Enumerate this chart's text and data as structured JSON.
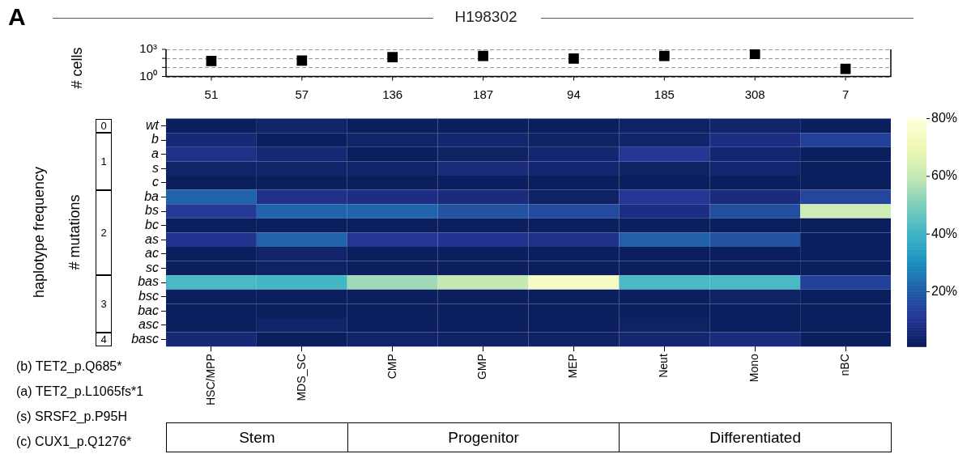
{
  "chart_data": [
    {
      "type": "scatter",
      "title": "H198302",
      "ylabel": "# cells",
      "annotations": [
        "A"
      ],
      "categories": [
        "51",
        "57",
        "136",
        "187",
        "94",
        "185",
        "308",
        "7"
      ],
      "series": [
        {
          "color": "#000000",
          "values": [
            51,
            57,
            136,
            187,
            94,
            185,
            308,
            7
          ]
        }
      ],
      "log": "y",
      "ylim": [
        1,
        1000
      ],
      "yticks": [
        {
          "value": 1,
          "label": "10⁰"
        },
        {
          "value": 10,
          "label": null
        },
        {
          "value": 100,
          "label": null
        },
        {
          "value": 1000,
          "label": "10³"
        }
      ],
      "grid": "y",
      "marker": "square"
    },
    {
      "type": "heatmap",
      "ylabel": "haplotype frequency",
      "annotations": [
        "# mutations",
        "0",
        "1",
        "2",
        "3",
        "4",
        "Stem",
        "Progenitor",
        "Differentiated",
        "(b) TET2_p.Q685*",
        "(a) TET2_p.L1065fs*1",
        "(s) SRSF2_p.P95H",
        "(c) CUX1_p.Q1276*"
      ],
      "categories": [
        "HSC/MPP",
        "MDS_SC",
        "CMP",
        "GMP",
        "MEP",
        "Neut",
        "Mono",
        "nBC"
      ],
      "y_categories": [
        "wt",
        "b",
        "a",
        "s",
        "c",
        "ba",
        "bs",
        "bc",
        "as",
        "ac",
        "sc",
        "bas",
        "bsc",
        "bac",
        "asc",
        "basc"
      ],
      "cells": [
        [
          2,
          4,
          2,
          2,
          2,
          3,
          4,
          2
        ],
        [
          6,
          2,
          4,
          5,
          3,
          4,
          8,
          14
        ],
        [
          9,
          6,
          2,
          3,
          5,
          11,
          5,
          2
        ],
        [
          4,
          4,
          4,
          7,
          5,
          3,
          5,
          2
        ],
        [
          2,
          2,
          2,
          2,
          2,
          2,
          2,
          2
        ],
        [
          22,
          9,
          8,
          7,
          3,
          11,
          7,
          15
        ],
        [
          12,
          22,
          22,
          18,
          16,
          8,
          17,
          62
        ],
        [
          2,
          2,
          2,
          2,
          2,
          2,
          2,
          2
        ],
        [
          10,
          22,
          11,
          10,
          9,
          21,
          18,
          2
        ],
        [
          2,
          4,
          2,
          2,
          2,
          2,
          2,
          2
        ],
        [
          2,
          3,
          2,
          2,
          2,
          2,
          2,
          2
        ],
        [
          42,
          41,
          55,
          60,
          75,
          42,
          42,
          14
        ],
        [
          2,
          2,
          2,
          2,
          2,
          2,
          3,
          2
        ],
        [
          2,
          2,
          2,
          2,
          2,
          2,
          2,
          2
        ],
        [
          2,
          4,
          2,
          2,
          2,
          3,
          2,
          2
        ],
        [
          6,
          2,
          4,
          3,
          3,
          5,
          7,
          2
        ]
      ],
      "clim": [
        1,
        80
      ],
      "cticks": [
        {
          "value": 20,
          "label": "20%"
        },
        {
          "value": 40,
          "label": "40%"
        },
        {
          "value": 60,
          "label": "60%"
        },
        {
          "value": 80,
          "label": "80%"
        }
      ]
    }
  ]
}
